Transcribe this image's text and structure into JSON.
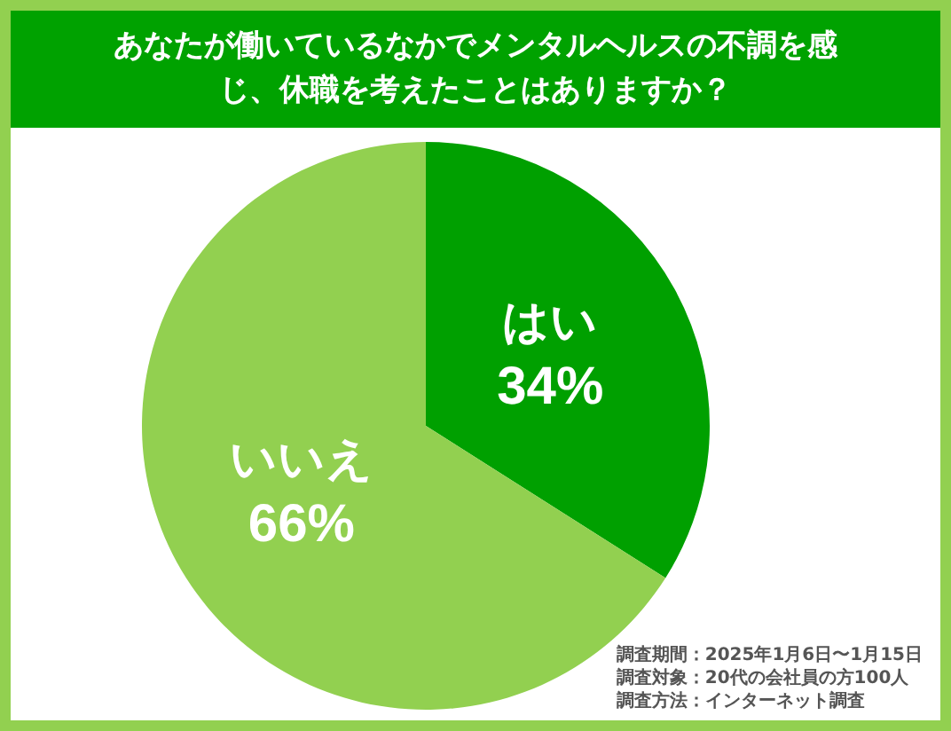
{
  "chart_data": {
    "type": "pie",
    "title": "あなたが働いているなかでメンタルヘルスの不調を感じ、休職を考えたことはありますか？",
    "categories": [
      "はい",
      "いいえ"
    ],
    "values": [
      34,
      66
    ],
    "value_labels": [
      "34%",
      "66%"
    ],
    "colors": [
      "#00a000",
      "#92d050"
    ],
    "legend": false,
    "annotations": [
      "調査期間：2025年1月6日〜1月15日",
      "調査対象：20代の会社員の方100人",
      "調査方法：インターネット調査"
    ]
  }
}
